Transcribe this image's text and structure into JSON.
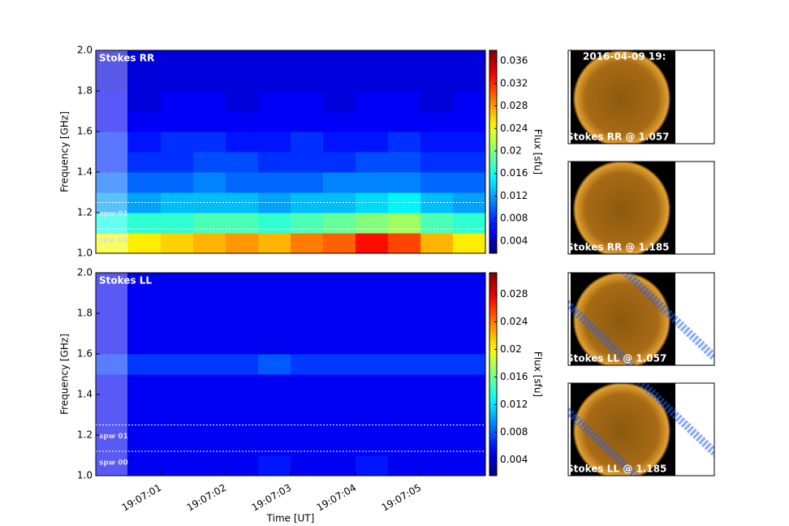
{
  "chart_data": [
    {
      "type": "heatmap",
      "label": "Stokes RR",
      "ylabel": "Frequency [GHz]",
      "colormap": "jet",
      "ylim": [
        1.0,
        2.0
      ],
      "yticks": [
        {
          "value": 1.0,
          "label": "1.0"
        },
        {
          "value": 1.2,
          "label": "1.2"
        },
        {
          "value": 1.4,
          "label": "1.4"
        },
        {
          "value": 1.6,
          "label": "1.6"
        },
        {
          "value": 1.8,
          "label": "1.8"
        },
        {
          "value": 2.0,
          "label": "2.0"
        }
      ],
      "xlim": [
        "19:07:00",
        "19:07:06"
      ],
      "clim": [
        0.0018,
        0.0379
      ],
      "cticks": [
        0.004,
        0.008,
        0.012,
        0.016,
        0.02,
        0.024,
        0.028,
        0.032,
        0.036
      ],
      "colorbar_label": "Flux [sfu]",
      "spw_lines": [
        1.25,
        1.12
      ],
      "spw_labels": [
        "spw 01",
        "spw 00"
      ],
      "values": [
        [
          0.024,
          0.025,
          0.026,
          0.027,
          0.028,
          0.027,
          0.029,
          0.03,
          0.033,
          0.031,
          0.027,
          0.025
        ],
        [
          0.016,
          0.017,
          0.017,
          0.018,
          0.018,
          0.017,
          0.018,
          0.019,
          0.02,
          0.021,
          0.018,
          0.017
        ],
        [
          0.012,
          0.012,
          0.013,
          0.013,
          0.013,
          0.012,
          0.013,
          0.013,
          0.014,
          0.015,
          0.013,
          0.012
        ],
        [
          0.01,
          0.01,
          0.01,
          0.011,
          0.01,
          0.01,
          0.01,
          0.011,
          0.011,
          0.011,
          0.01,
          0.01
        ],
        [
          0.008,
          0.008,
          0.008,
          0.009,
          0.009,
          0.008,
          0.008,
          0.008,
          0.009,
          0.009,
          0.008,
          0.008
        ],
        [
          0.008,
          0.007,
          0.008,
          0.008,
          0.007,
          0.007,
          0.008,
          0.007,
          0.007,
          0.008,
          0.007,
          0.007
        ],
        [
          0.006,
          0.006,
          0.006,
          0.006,
          0.006,
          0.006,
          0.006,
          0.006,
          0.006,
          0.006,
          0.006,
          0.006
        ],
        [
          0.006,
          0.005,
          0.006,
          0.006,
          0.005,
          0.006,
          0.006,
          0.005,
          0.006,
          0.006,
          0.005,
          0.006
        ],
        [
          0.005,
          0.005,
          0.005,
          0.005,
          0.005,
          0.005,
          0.005,
          0.005,
          0.005,
          0.005,
          0.005,
          0.005
        ],
        [
          0.005,
          0.005,
          0.005,
          0.005,
          0.005,
          0.005,
          0.005,
          0.005,
          0.005,
          0.005,
          0.005,
          0.005
        ]
      ]
    },
    {
      "type": "heatmap",
      "label": "Stokes LL",
      "ylabel": "Frequency [GHz]",
      "xlabel": "Time [UT]",
      "colormap": "jet",
      "ylim": [
        1.0,
        2.0
      ],
      "yticks": [
        {
          "value": 1.0,
          "label": "1.0"
        },
        {
          "value": 1.2,
          "label": "1.2"
        },
        {
          "value": 1.4,
          "label": "1.4"
        },
        {
          "value": 1.6,
          "label": "1.6"
        },
        {
          "value": 1.8,
          "label": "1.8"
        },
        {
          "value": 2.0,
          "label": "2.0"
        }
      ],
      "xlim": [
        "19:07:00",
        "19:07:06"
      ],
      "xticks": [
        "19:07:01",
        "19:07:02",
        "19:07:03",
        "19:07:04",
        "19:07:05"
      ],
      "clim": [
        0.0017,
        0.0311
      ],
      "cticks": [
        0.004,
        0.008,
        0.012,
        0.016,
        0.02,
        0.024,
        0.028
      ],
      "colorbar_label": "Flux [sfu]",
      "spw_lines": [
        1.25,
        1.12
      ],
      "spw_labels": [
        "spw 01",
        "spw 00"
      ],
      "values": [
        [
          0.005,
          0.005,
          0.005,
          0.005,
          0.005,
          0.006,
          0.005,
          0.005,
          0.006,
          0.005,
          0.005,
          0.005
        ],
        [
          0.005,
          0.005,
          0.005,
          0.005,
          0.005,
          0.005,
          0.005,
          0.005,
          0.005,
          0.005,
          0.005,
          0.005
        ],
        [
          0.005,
          0.005,
          0.005,
          0.005,
          0.005,
          0.005,
          0.005,
          0.005,
          0.005,
          0.005,
          0.005,
          0.005
        ],
        [
          0.005,
          0.005,
          0.005,
          0.005,
          0.005,
          0.005,
          0.005,
          0.005,
          0.005,
          0.005,
          0.005,
          0.005
        ],
        [
          0.005,
          0.005,
          0.005,
          0.005,
          0.005,
          0.005,
          0.005,
          0.005,
          0.005,
          0.005,
          0.005,
          0.005
        ],
        [
          0.007,
          0.007,
          0.007,
          0.007,
          0.007,
          0.008,
          0.007,
          0.007,
          0.007,
          0.007,
          0.007,
          0.007
        ],
        [
          0.005,
          0.005,
          0.005,
          0.005,
          0.005,
          0.005,
          0.005,
          0.005,
          0.005,
          0.005,
          0.005,
          0.005
        ],
        [
          0.005,
          0.005,
          0.005,
          0.005,
          0.005,
          0.005,
          0.005,
          0.005,
          0.005,
          0.005,
          0.005,
          0.005
        ],
        [
          0.005,
          0.005,
          0.005,
          0.005,
          0.005,
          0.005,
          0.005,
          0.005,
          0.005,
          0.005,
          0.005,
          0.005
        ],
        [
          0.005,
          0.005,
          0.005,
          0.005,
          0.005,
          0.005,
          0.005,
          0.005,
          0.005,
          0.005,
          0.005,
          0.005
        ]
      ]
    },
    {
      "type": "image",
      "images": [
        {
          "title": "2016-04-09 19:",
          "caption": "Stokes RR @ 1.057"
        },
        {
          "caption": "Stokes RR @ 1.185"
        },
        {
          "caption": "Stokes LL @ 1.057"
        },
        {
          "caption": "Stokes LL @ 1.185"
        }
      ]
    }
  ]
}
